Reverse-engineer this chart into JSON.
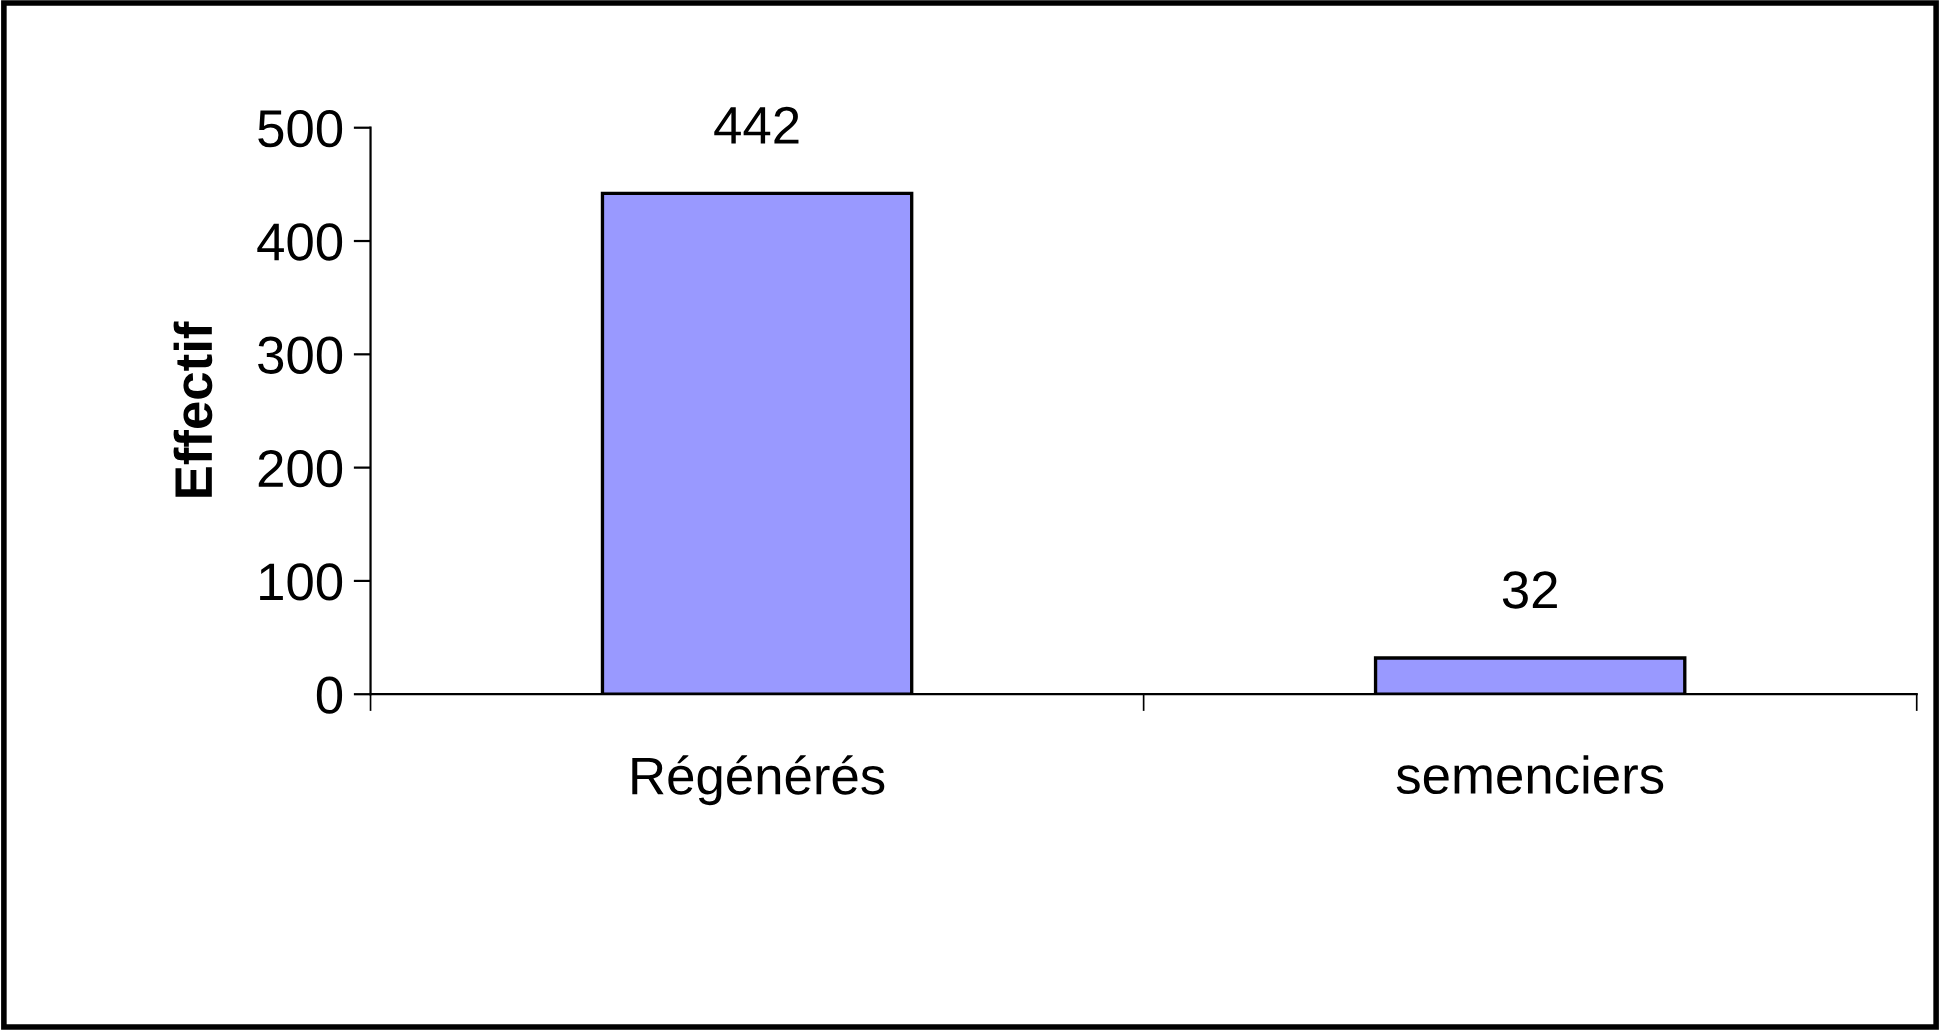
{
  "chart_data": {
    "type": "bar",
    "ylabel": "Effectif",
    "categories": [
      "Régénérés",
      "semenciers"
    ],
    "values": [
      442,
      32
    ],
    "color": "#9999ff",
    "ylim": [
      0,
      500
    ],
    "yticks": [
      0,
      100,
      200,
      300,
      400,
      500
    ],
    "data_labels": true,
    "grid": false,
    "legend": false
  }
}
